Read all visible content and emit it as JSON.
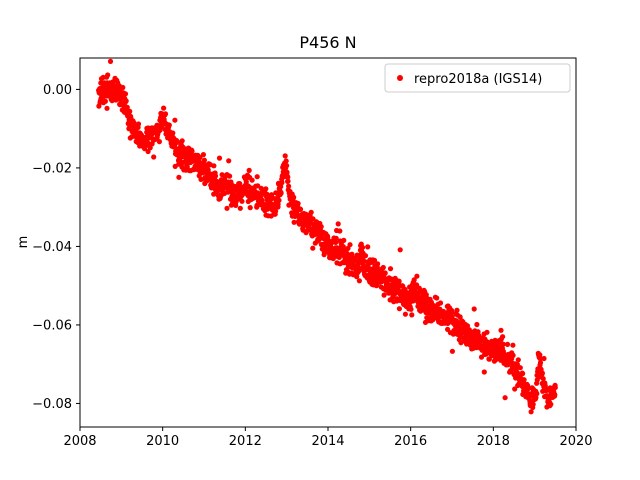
{
  "chart_data": {
    "type": "scatter",
    "title": "P456 N",
    "xlabel": "",
    "ylabel": "m",
    "xlim": [
      2008,
      2020
    ],
    "ylim": [
      -0.086,
      0.008
    ],
    "grid": false,
    "x_ticks": [
      2008,
      2010,
      2012,
      2014,
      2016,
      2018,
      2020
    ],
    "x_tick_labels": [
      "2008",
      "2010",
      "2012",
      "2014",
      "2016",
      "2018",
      "2020"
    ],
    "y_ticks": [
      0.0,
      -0.02,
      -0.04,
      -0.06,
      -0.08
    ],
    "y_tick_labels": [
      "0.00",
      "−0.02",
      "−0.04",
      "−0.06",
      "−0.08"
    ],
    "legend": {
      "position": "upper right",
      "entries": [
        {
          "label": "repro2018a (IGS14)",
          "marker": "dot",
          "color": "#ff0000"
        }
      ]
    },
    "series": [
      {
        "name": "repro2018a (IGS14)",
        "color": "#ff0000",
        "marker": "point",
        "point_count": 1700,
        "noise_sd": 0.0016,
        "outlier_fraction": 0.04,
        "outlier_scale": 2.6,
        "trend": [
          [
            2008.45,
            -0.001
          ],
          [
            2008.55,
            -0.0012
          ],
          [
            2008.65,
            -0.0008
          ],
          [
            2008.75,
            -0.0005
          ],
          [
            2008.85,
            0.0005
          ],
          [
            2008.95,
            -0.0005
          ],
          [
            2009.05,
            -0.003
          ],
          [
            2009.15,
            -0.006
          ],
          [
            2009.25,
            -0.0095
          ],
          [
            2009.4,
            -0.0125
          ],
          [
            2009.55,
            -0.013
          ],
          [
            2009.7,
            -0.012
          ],
          [
            2009.85,
            -0.011
          ],
          [
            2009.95,
            -0.0085
          ],
          [
            2010.0,
            -0.007
          ],
          [
            2010.1,
            -0.0105
          ],
          [
            2010.25,
            -0.014
          ],
          [
            2010.4,
            -0.0165
          ],
          [
            2010.55,
            -0.0175
          ],
          [
            2010.7,
            -0.018
          ],
          [
            2010.85,
            -0.019
          ],
          [
            2011.0,
            -0.02
          ],
          [
            2011.15,
            -0.022
          ],
          [
            2011.3,
            -0.0245
          ],
          [
            2011.45,
            -0.025
          ],
          [
            2011.55,
            -0.024
          ],
          [
            2011.7,
            -0.0265
          ],
          [
            2011.85,
            -0.0265
          ],
          [
            2012.0,
            -0.025
          ],
          [
            2012.15,
            -0.0255
          ],
          [
            2012.3,
            -0.0265
          ],
          [
            2012.45,
            -0.028
          ],
          [
            2012.6,
            -0.0295
          ],
          [
            2012.72,
            -0.03
          ],
          [
            2012.82,
            -0.0275
          ],
          [
            2012.9,
            -0.0215
          ],
          [
            2012.97,
            -0.0185
          ],
          [
            2013.05,
            -0.0265
          ],
          [
            2013.15,
            -0.0305
          ],
          [
            2013.3,
            -0.032
          ],
          [
            2013.45,
            -0.0335
          ],
          [
            2013.6,
            -0.035
          ],
          [
            2013.75,
            -0.037
          ],
          [
            2013.9,
            -0.039
          ],
          [
            2014.0,
            -0.04
          ],
          [
            2014.15,
            -0.0408
          ],
          [
            2014.3,
            -0.042
          ],
          [
            2014.45,
            -0.0435
          ],
          [
            2014.6,
            -0.0452
          ],
          [
            2014.72,
            -0.046
          ],
          [
            2014.8,
            -0.041
          ],
          [
            2014.88,
            -0.0455
          ],
          [
            2015.0,
            -0.0468
          ],
          [
            2015.15,
            -0.047
          ],
          [
            2015.3,
            -0.048
          ],
          [
            2015.45,
            -0.0492
          ],
          [
            2015.6,
            -0.0505
          ],
          [
            2015.75,
            -0.052
          ],
          [
            2015.9,
            -0.0535
          ],
          [
            2016.0,
            -0.0535
          ],
          [
            2016.08,
            -0.051
          ],
          [
            2016.18,
            -0.0535
          ],
          [
            2016.3,
            -0.0548
          ],
          [
            2016.45,
            -0.0558
          ],
          [
            2016.6,
            -0.0568
          ],
          [
            2016.75,
            -0.0575
          ],
          [
            2016.9,
            -0.0585
          ],
          [
            2017.0,
            -0.059
          ],
          [
            2017.15,
            -0.0605
          ],
          [
            2017.3,
            -0.062
          ],
          [
            2017.45,
            -0.063
          ],
          [
            2017.6,
            -0.0638
          ],
          [
            2017.75,
            -0.065
          ],
          [
            2017.9,
            -0.0658
          ],
          [
            2018.0,
            -0.0662
          ],
          [
            2018.1,
            -0.0668
          ],
          [
            2018.2,
            -0.0655
          ],
          [
            2018.3,
            -0.068
          ],
          [
            2018.45,
            -0.07
          ],
          [
            2018.6,
            -0.0725
          ],
          [
            2018.75,
            -0.0755
          ],
          [
            2018.88,
            -0.078
          ],
          [
            2018.97,
            -0.08
          ],
          [
            2019.05,
            -0.076
          ],
          [
            2019.1,
            -0.066
          ],
          [
            2019.16,
            -0.072
          ],
          [
            2019.24,
            -0.0765
          ],
          [
            2019.32,
            -0.0785
          ],
          [
            2019.4,
            -0.078
          ],
          [
            2019.5,
            -0.079
          ]
        ]
      }
    ]
  }
}
